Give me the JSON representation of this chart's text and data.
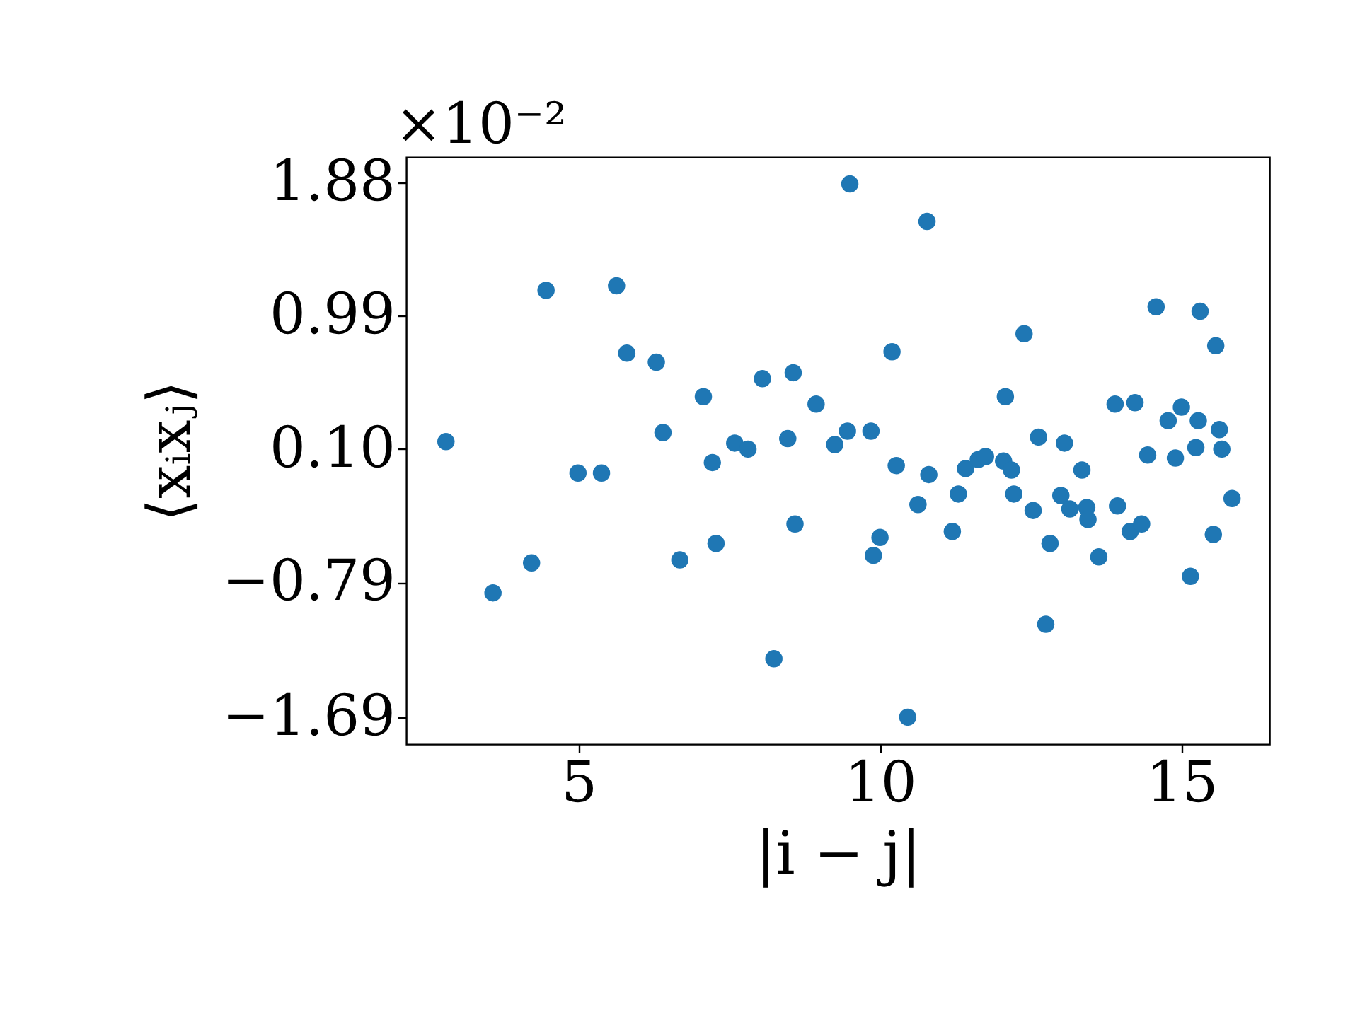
{
  "chart_data": {
    "type": "scatter",
    "xlabel": "|i − j|",
    "ylabel": "⟨xᵢxⱼ⟩",
    "annotations": [
      "×10⁻²"
    ],
    "x": [
      2.8,
      3.58,
      4.22,
      4.46,
      4.99,
      5.38,
      5.63,
      5.8,
      6.29,
      6.4,
      6.68,
      7.07,
      7.22,
      7.28,
      7.59,
      7.81,
      8.05,
      8.24,
      8.47,
      8.56,
      8.59,
      8.94,
      9.25,
      9.46,
      9.5,
      9.85,
      9.89,
      10.0,
      10.2,
      10.27,
      10.46,
      10.63,
      10.78,
      10.81,
      11.2,
      11.3,
      11.42,
      11.63,
      11.75,
      12.05,
      12.08,
      12.18,
      12.22,
      12.39,
      12.54,
      12.63,
      12.75,
      12.82,
      13.0,
      13.06,
      13.15,
      13.35,
      13.43,
      13.45,
      13.63,
      13.9,
      13.94,
      14.15,
      14.23,
      14.34,
      14.44,
      14.58,
      14.78,
      14.9,
      15.0,
      15.15,
      15.24,
      15.28,
      15.31,
      15.53,
      15.57,
      15.63,
      15.67,
      15.84
    ],
    "series": [
      {
        "color": "#1f77b4",
        "values": [
          0.15,
          -0.86,
          -0.66,
          1.16,
          -0.06,
          -0.06,
          1.19,
          0.74,
          0.68,
          0.21,
          -0.64,
          0.45,
          0.01,
          -0.53,
          0.14,
          0.1,
          0.57,
          -1.3,
          0.17,
          0.61,
          -0.4,
          0.4,
          0.13,
          0.22,
          1.87,
          0.22,
          -0.61,
          -0.49,
          0.75,
          -0.01,
          -1.69,
          -0.27,
          1.62,
          -0.07,
          -0.45,
          -0.2,
          -0.03,
          0.03,
          0.05,
          0.02,
          0.45,
          -0.04,
          -0.2,
          0.87,
          -0.31,
          0.18,
          -1.07,
          -0.53,
          -0.21,
          0.14,
          -0.3,
          -0.04,
          -0.29,
          -0.37,
          -0.62,
          0.4,
          -0.28,
          -0.45,
          0.41,
          -0.4,
          0.06,
          1.05,
          0.29,
          0.04,
          0.38,
          -0.75,
          0.11,
          0.29,
          1.02,
          -0.47,
          0.79,
          0.23,
          0.1,
          -0.23
        ]
      }
    ],
    "xlim": [
      2.14,
      16.46
    ],
    "xticks": [
      5,
      10,
      15
    ],
    "ylim": [
      -1.87,
      2.05
    ],
    "yticks": [
      {
        "value": -1.69,
        "label": "−1.69"
      },
      {
        "value": -0.79,
        "label": "−0.79"
      },
      {
        "value": 0.1,
        "label": "0.10"
      },
      0.99,
      1.88
    ],
    "marker": "circle",
    "grid": false
  }
}
